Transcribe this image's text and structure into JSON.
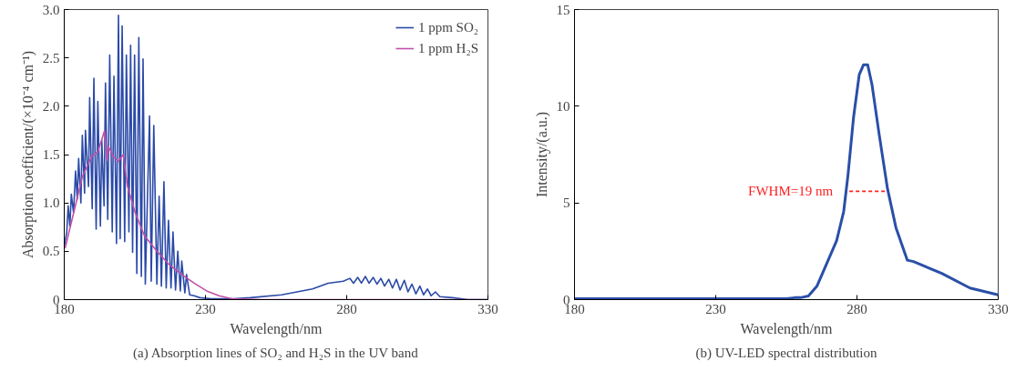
{
  "chart_data": [
    {
      "type": "line",
      "xlabel": "Wavelength/nm",
      "ylabel": "Absorption coefficient/(×10⁻⁴ cm⁻¹)",
      "xlim": [
        180,
        330
      ],
      "ylim": [
        0,
        3
      ],
      "xticks": [
        180,
        230,
        280,
        330
      ],
      "yticks": [
        0,
        0.5,
        {
          "value": 1,
          "label": "1.0"
        },
        1.5,
        {
          "value": 2,
          "label": "2.0"
        },
        2.5,
        {
          "value": 3,
          "label": "3.0"
        }
      ],
      "grid": false,
      "legend": "top right",
      "series": [
        {
          "name": "1 ppm SO₂",
          "color": "#2b4aa8",
          "x": [
            180,
            180.9,
            181.4,
            182.0,
            182.5,
            183.3,
            184.0,
            184.6,
            185.1,
            185.9,
            186.4,
            187.2,
            187.5,
            188.6,
            189.0,
            189.9,
            190.5,
            191.3,
            191.9,
            192.8,
            193.3,
            194.1,
            194.6,
            195.4,
            196.1,
            197.0,
            197.6,
            198.5,
            199.2,
            199.8,
            200.5,
            201.4,
            202.0,
            202.9,
            203.5,
            204.2,
            204.9,
            205.7,
            206.4,
            207.3,
            207.9,
            208.7,
            210.2,
            210.8,
            211.7,
            212.8,
            213.6,
            214.4,
            215.3,
            216.1,
            216.9,
            217.8,
            218.5,
            219.4,
            220.2,
            221.1,
            221.6,
            222.7,
            223.3,
            224.4,
            226,
            228,
            232,
            240,
            245.9,
            256.9,
            267.9,
            273.4,
            278.8,
            281.1,
            282.4,
            283.9,
            285.2,
            286.6,
            287.9,
            289.4,
            290.7,
            292.1,
            293.4,
            294.9,
            296.2,
            297.6,
            298.9,
            300.4,
            301.7,
            303.1,
            304.5,
            305.9,
            307.2,
            308.6,
            309.9,
            311.4,
            313.0,
            317.4,
            322.9,
            330
          ],
          "values": [
            0.55,
            0.7,
            0.97,
            0.76,
            1.09,
            0.9,
            1.33,
            1.04,
            1.46,
            1.0,
            1.7,
            1.1,
            1.75,
            1.17,
            2.09,
            0.94,
            2.29,
            0.73,
            2.05,
            0.76,
            1.65,
            0.97,
            2.24,
            0.83,
            2.53,
            0.7,
            2.31,
            0.58,
            2.94,
            0.63,
            2.83,
            0.6,
            2.53,
            0.7,
            2.63,
            0.49,
            2.53,
            0.27,
            2.71,
            0.24,
            2.49,
            0.16,
            1.9,
            0.19,
            1.8,
            0.16,
            1.07,
            0.14,
            1.22,
            0.12,
            0.82,
            0.12,
            0.7,
            0.1,
            0.5,
            0.09,
            0.4,
            0.07,
            0.26,
            0.05,
            0.04,
            0.02,
            0.01,
            0.01,
            0.02,
            0.05,
            0.11,
            0.17,
            0.19,
            0.22,
            0.17,
            0.23,
            0.17,
            0.24,
            0.17,
            0.23,
            0.16,
            0.22,
            0.14,
            0.21,
            0.12,
            0.21,
            0.1,
            0.2,
            0.08,
            0.16,
            0.06,
            0.14,
            0.05,
            0.11,
            0.04,
            0.08,
            0.03,
            0.02,
            0,
            0
          ]
        },
        {
          "name": "1 ppm H₂S",
          "color": "#c050a8",
          "x": [
            180.3,
            186.4,
            189.7,
            191.9,
            194.3,
            195.2,
            195.7,
            197.4,
            199.1,
            200.9,
            202.4,
            205.1,
            208.4,
            212.8,
            217.2,
            221.6,
            226.0,
            230.4,
            234.8,
            239.3,
            250,
            330
          ],
          "values": [
            0.53,
            1.27,
            1.48,
            1.53,
            1.75,
            1.44,
            1.58,
            1.48,
            1.43,
            1.5,
            1.17,
            0.9,
            0.66,
            0.5,
            0.36,
            0.26,
            0.17,
            0.09,
            0.04,
            0.01,
            0,
            0
          ]
        }
      ],
      "annotations": [
        "(a) Absorption lines of SO₂ and H₂S in the UV band"
      ]
    },
    {
      "type": "line",
      "xlabel": "Wavelength/nm",
      "ylabel": "Intensity/(a.u.)",
      "xlim": [
        180,
        330
      ],
      "ylim": [
        0,
        15
      ],
      "xticks": [
        180,
        230,
        280,
        330
      ],
      "yticks": [
        0,
        5,
        10,
        15
      ],
      "grid": false,
      "series": [
        {
          "color": "#2a4fa8",
          "x": [
            180,
            200,
            220,
            240,
            255,
            258,
            260,
            262.8,
            265.8,
            268.8,
            272.8,
            275.3,
            276.8,
            278.8,
            280.8,
            282.3,
            283.8,
            285.3,
            287.8,
            290.8,
            293.8,
            297.8,
            300,
            310,
            320,
            330
          ],
          "values": [
            0.05,
            0.05,
            0.05,
            0.05,
            0.05,
            0.1,
            0.1,
            0.19,
            0.69,
            1.7,
            3.05,
            4.56,
            6.41,
            9.44,
            11.63,
            12.14,
            12.14,
            11.13,
            8.6,
            5.74,
            3.72,
            2.04,
            1.97,
            1.36,
            0.6,
            0.25
          ]
        },
        {
          "color": "#ff2020",
          "line_style": "dashed",
          "x": [
            277.3,
            290.8
          ],
          "values": [
            5.6,
            5.6
          ]
        }
      ],
      "annotations": [
        {
          "text": "FWHM=19 nm",
          "x": 277.3,
          "y": 5.6
        },
        "(b) UV-LED spectral distribution"
      ]
    }
  ]
}
